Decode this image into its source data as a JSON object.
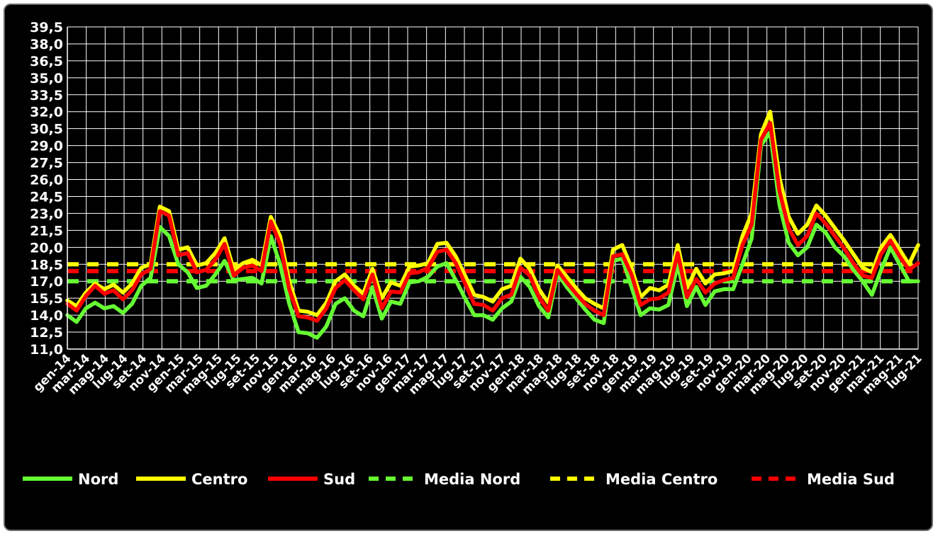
{
  "chart_data": {
    "type": "line",
    "title": "",
    "xlabel": "",
    "ylabel": "",
    "ylim": [
      11.0,
      39.5
    ],
    "yticks": [
      "39,5",
      "38,0",
      "36,5",
      "35,0",
      "33,5",
      "32,0",
      "30,5",
      "29,0",
      "27,5",
      "26,0",
      "24,5",
      "23,0",
      "21,5",
      "20,0",
      "18,5",
      "17,0",
      "15,5",
      "14,0",
      "12,5",
      "11,0"
    ],
    "xtick_labels": [
      "gen-14",
      "mar-14",
      "mag-14",
      "lug-14",
      "set-14",
      "nov-14",
      "gen-15",
      "mar-15",
      "mag-15",
      "lug-15",
      "set-15",
      "nov-15",
      "gen-16",
      "mar-16",
      "mag-16",
      "lug-16",
      "set-16",
      "nov-16",
      "gen-17",
      "mar-17",
      "mag-17",
      "lug-17",
      "set-17",
      "nov-17",
      "gen-18",
      "mar-18",
      "mag-18",
      "lug-18",
      "set-18",
      "nov-18",
      "gen-19",
      "mar-19",
      "mag-19",
      "lug-19",
      "set-19",
      "nov-19",
      "gen-20",
      "mar-20",
      "mag-20",
      "lug-20",
      "set-20",
      "nov-20",
      "gen-21",
      "mar-21",
      "mag-21",
      "lug-21"
    ],
    "grid": true,
    "legend_position": "bottom",
    "series": [
      {
        "name": "Nord",
        "color": "#66ff33",
        "style": "solid",
        "values": [
          14.0,
          13.4,
          14.6,
          15.1,
          14.6,
          14.8,
          14.2,
          15.0,
          16.6,
          17.3,
          21.8,
          21.0,
          18.5,
          17.8,
          16.4,
          16.6,
          17.6,
          18.8,
          17.1,
          17.2,
          17.3,
          16.8,
          21.0,
          18.5,
          15.0,
          12.5,
          12.4,
          12.0,
          13.0,
          15.0,
          15.5,
          14.4,
          13.9,
          16.5,
          13.7,
          15.2,
          15.0,
          16.9,
          17.0,
          17.4,
          18.3,
          18.6,
          17.1,
          15.5,
          14.0,
          14.0,
          13.6,
          14.6,
          15.2,
          17.4,
          16.5,
          14.8,
          13.8,
          17.7,
          16.5,
          15.5,
          14.5,
          13.6,
          13.3,
          18.8,
          19.0,
          16.5,
          14.0,
          14.6,
          14.5,
          14.9,
          18.5,
          14.8,
          16.5,
          14.9,
          16.1,
          16.3,
          16.3,
          18.5,
          20.8,
          29.0,
          30.2,
          23.8,
          20.4,
          19.3,
          20.0,
          22.0,
          21.3,
          20.0,
          19.2,
          18.0,
          17.0,
          15.8,
          18.0,
          20.0,
          18.5,
          17.0,
          17.0
        ]
      },
      {
        "name": "Centro",
        "color": "#ffff00",
        "style": "solid",
        "values": [
          15.3,
          14.8,
          16.0,
          16.8,
          16.3,
          16.7,
          16.0,
          16.8,
          18.2,
          18.5,
          23.6,
          23.2,
          19.8,
          20.0,
          18.4,
          18.6,
          19.5,
          20.8,
          18.0,
          18.6,
          18.9,
          18.4,
          22.7,
          21.0,
          17.0,
          14.4,
          14.3,
          14.0,
          15.1,
          17.0,
          17.6,
          16.6,
          15.9,
          18.1,
          15.5,
          16.9,
          16.6,
          18.3,
          18.4,
          18.6,
          20.3,
          20.4,
          19.2,
          17.5,
          15.8,
          15.6,
          15.2,
          16.3,
          16.6,
          19.0,
          18.1,
          16.3,
          15.1,
          18.4,
          17.4,
          16.4,
          15.5,
          15.0,
          14.6,
          19.8,
          20.2,
          18.2,
          15.6,
          16.4,
          16.2,
          16.7,
          20.2,
          16.4,
          18.1,
          16.8,
          17.6,
          17.7,
          17.9,
          21.0,
          23.0,
          30.0,
          32.0,
          26.2,
          22.7,
          21.2,
          22.0,
          23.7,
          22.8,
          21.7,
          20.6,
          19.4,
          18.2,
          17.8,
          20.0,
          21.1,
          19.8,
          18.5,
          20.2
        ]
      },
      {
        "name": "Sud",
        "color": "#ff0000",
        "style": "solid",
        "values": [
          15.0,
          14.4,
          15.7,
          16.6,
          15.9,
          16.2,
          15.4,
          16.2,
          17.6,
          18.1,
          23.2,
          22.8,
          19.3,
          19.5,
          17.8,
          18.0,
          18.9,
          20.3,
          17.5,
          18.2,
          18.4,
          17.9,
          22.3,
          20.3,
          16.3,
          13.9,
          13.8,
          13.5,
          14.6,
          16.4,
          17.1,
          16.2,
          15.4,
          17.6,
          14.6,
          16.1,
          16.0,
          17.7,
          17.8,
          18.2,
          19.6,
          19.8,
          18.6,
          16.8,
          15.0,
          14.9,
          14.4,
          15.5,
          15.8,
          18.2,
          17.5,
          15.6,
          14.4,
          18.0,
          16.9,
          15.9,
          15.0,
          14.4,
          14.0,
          19.2,
          19.4,
          17.6,
          14.9,
          15.4,
          15.5,
          16.0,
          19.5,
          15.6,
          17.2,
          16.0,
          16.8,
          17.1,
          17.3,
          20.2,
          22.0,
          29.5,
          31.0,
          25.0,
          21.7,
          20.2,
          21.0,
          23.0,
          22.1,
          21.0,
          19.9,
          18.6,
          17.5,
          17.3,
          19.4,
          20.6,
          19.2,
          18.0,
          18.6
        ]
      },
      {
        "name": "Media Nord",
        "color": "#66ff33",
        "style": "dashed",
        "values": [
          17.0,
          17.0
        ]
      },
      {
        "name": "Media Centro",
        "color": "#ffff00",
        "style": "dashed",
        "values": [
          18.5,
          18.5
        ]
      },
      {
        "name": "Media Sud",
        "color": "#ff0000",
        "style": "dashed",
        "values": [
          17.9,
          17.9
        ]
      }
    ]
  }
}
